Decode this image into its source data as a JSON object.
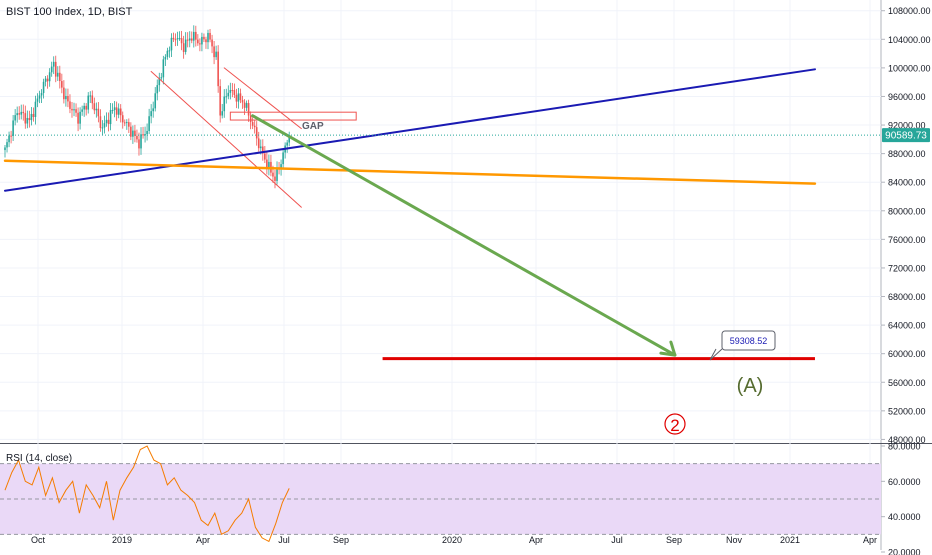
{
  "header": {
    "title": "BIST 100 Index, 1D, BIST"
  },
  "price_badge": "90589.73",
  "annotations": {
    "gap_label": "GAP",
    "target_label": "59308.52",
    "wave_a_label": "(A)",
    "wave_2_label": "2"
  },
  "rsi": {
    "title": "RSI (14, close)",
    "levels": [
      "80.0000",
      "60.0000",
      "40.0000",
      "20.0000"
    ]
  },
  "colors": {
    "up": "#26a69a",
    "down": "#ef5350",
    "blue_line": "#1a1ab3",
    "orange_line": "#ff9800",
    "green_arrow": "#6aa84f",
    "target_line": "#e00000",
    "rsi_line": "#f57c00",
    "rsi_band": "#ead9f7",
    "wave_a": "#556b2f",
    "wave_2": "#e00000"
  },
  "chart_data": {
    "type": "candlestick",
    "title": "BIST 100 Index, 1D, BIST",
    "y_tick_labels": [
      "108000.00",
      "104000.00",
      "100000.00",
      "96000.00",
      "92000.00",
      "88000.00",
      "84000.00",
      "80000.00",
      "76000.00",
      "72000.00",
      "68000.00",
      "64000.00",
      "60000.00",
      "56000.00",
      "52000.00",
      "48000.00"
    ],
    "x_tick_labels": [
      "Oct",
      "2019",
      "Apr",
      "Jul",
      "Sep",
      "2020",
      "Apr",
      "Jul",
      "Sep",
      "Nov",
      "2021",
      "Apr"
    ],
    "ylim": [
      47500,
      109500
    ],
    "last_close": 90589.73,
    "price_path": [
      [
        0,
        88500
      ],
      [
        6,
        94000
      ],
      [
        12,
        92500
      ],
      [
        18,
        97000
      ],
      [
        24,
        100500
      ],
      [
        30,
        95500
      ],
      [
        36,
        93000
      ],
      [
        42,
        96000
      ],
      [
        48,
        91500
      ],
      [
        54,
        94500
      ],
      [
        60,
        92000
      ],
      [
        66,
        89500
      ],
      [
        70,
        91500
      ],
      [
        76,
        98500
      ],
      [
        80,
        102500
      ],
      [
        84,
        104500
      ],
      [
        88,
        103000
      ],
      [
        92,
        104500
      ],
      [
        96,
        103500
      ],
      [
        100,
        104500
      ],
      [
        104,
        101500
      ],
      [
        106,
        93500
      ],
      [
        110,
        97000
      ],
      [
        114,
        96000
      ],
      [
        118,
        95000
      ],
      [
        122,
        92000
      ],
      [
        126,
        88500
      ],
      [
        130,
        86000
      ],
      [
        133,
        84500
      ],
      [
        136,
        87000
      ],
      [
        140,
        90590
      ]
    ],
    "drawings": {
      "blue_trendline": [
        [
          0,
          82800
        ],
        [
          399,
          99800
        ]
      ],
      "orange_trendline": [
        [
          0,
          87000
        ],
        [
          399,
          83800
        ]
      ],
      "green_arrow": [
        [
          122,
          93300
        ],
        [
          330,
          59800
        ]
      ],
      "red_channel_upper": [
        [
          108,
          100000
        ],
        [
          146,
          91500
        ]
      ],
      "red_channel_lower": [
        [
          72,
          99500
        ],
        [
          146,
          80500
        ]
      ],
      "target_line": {
        "x": [
          186,
          399
        ],
        "value": 59308.52
      },
      "gap_box": {
        "x": [
          111,
          173
        ],
        "values": [
          93800,
          92700
        ]
      }
    },
    "rsi": {
      "ylim": [
        20,
        80
      ],
      "overbought": 70,
      "oversold": 30,
      "values": [
        55,
        65,
        72,
        60,
        58,
        68,
        52,
        62,
        48,
        55,
        60,
        42,
        58,
        52,
        45,
        60,
        38,
        55,
        62,
        68,
        78,
        80,
        72,
        70,
        58,
        62,
        55,
        52,
        48,
        38,
        35,
        42,
        30,
        32,
        38,
        42,
        50,
        34,
        28,
        26,
        36,
        48,
        56
      ]
    }
  }
}
